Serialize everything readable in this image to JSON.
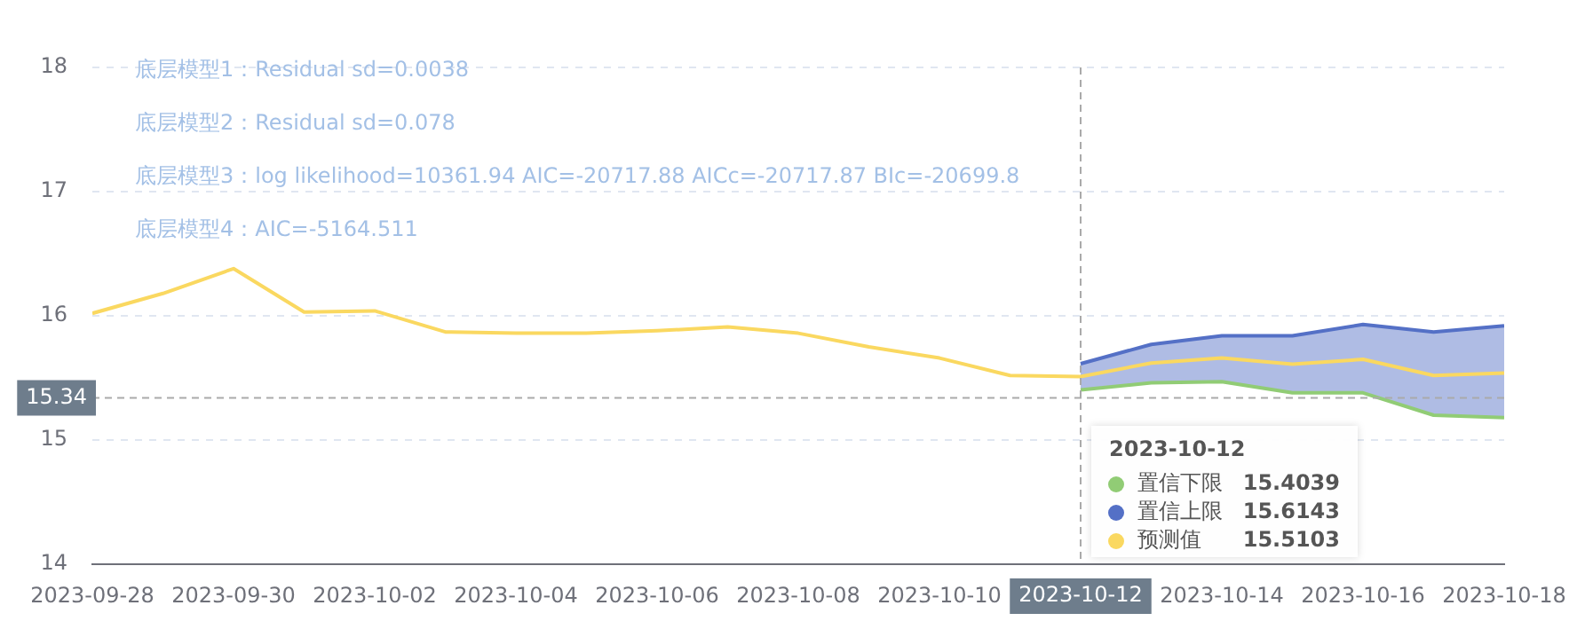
{
  "chart_data": {
    "type": "line",
    "x": [
      "2023-09-28",
      "2023-09-29",
      "2023-09-30",
      "2023-10-01",
      "2023-10-02",
      "2023-10-03",
      "2023-10-04",
      "2023-10-05",
      "2023-10-06",
      "2023-10-07",
      "2023-10-08",
      "2023-10-09",
      "2023-10-10",
      "2023-10-11",
      "2023-10-12",
      "2023-10-13",
      "2023-10-14",
      "2023-10-15",
      "2023-10-16",
      "2023-10-17",
      "2023-10-18"
    ],
    "series": [
      {
        "name": "置信下限",
        "color": "#91cc75",
        "values": [
          null,
          null,
          null,
          null,
          null,
          null,
          null,
          null,
          null,
          null,
          null,
          null,
          null,
          null,
          15.4039,
          15.46,
          15.47,
          15.38,
          15.38,
          15.2,
          15.18
        ]
      },
      {
        "name": "置信上限",
        "type": "area",
        "color": "#5470c6",
        "values": [
          null,
          null,
          null,
          null,
          null,
          null,
          null,
          null,
          null,
          null,
          null,
          null,
          null,
          null,
          15.6143,
          15.77,
          15.84,
          15.84,
          15.93,
          15.87,
          15.92
        ]
      },
      {
        "name": "预测值",
        "color": "#fad860",
        "values": [
          16.02,
          16.18,
          16.38,
          16.03,
          16.04,
          15.87,
          15.86,
          15.86,
          15.88,
          15.91,
          15.86,
          15.75,
          15.66,
          15.52,
          15.5103,
          15.62,
          15.66,
          15.61,
          15.65,
          15.52,
          15.54
        ]
      }
    ],
    "xlim": [
      "2023-09-28",
      "2023-10-18"
    ],
    "xticks": [
      "2023-09-28",
      "2023-09-30",
      "2023-10-02",
      "2023-10-04",
      "2023-10-06",
      "2023-10-08",
      "2023-10-10",
      "2023-10-12",
      "2023-10-14",
      "2023-10-16",
      "2023-10-18"
    ],
    "ylim": [
      14,
      18
    ],
    "yticks": [
      14,
      15,
      16,
      17,
      18
    ],
    "grid": "y",
    "legend": "bottom right",
    "marker": "none",
    "line_style": "solid",
    "ref_lines": [
      {
        "axis": "y",
        "value": 15.34,
        "label": "15.34"
      },
      {
        "axis": "x",
        "value": "2023-10-12",
        "label": "2023-10-12"
      }
    ],
    "annotations": [
      "底层模型1：Residual sd=0.0038",
      "底层模型2：Residual sd=0.078",
      "底层模型3：log likelihood=10361.94 AIC=-20717.88 AICc=-20717.87 BIc=-20699.8",
      "底层模型4：AIC=-5164.511",
      "2023-10-12",
      "15.4039",
      "15.6143",
      "15.5103"
    ]
  }
}
